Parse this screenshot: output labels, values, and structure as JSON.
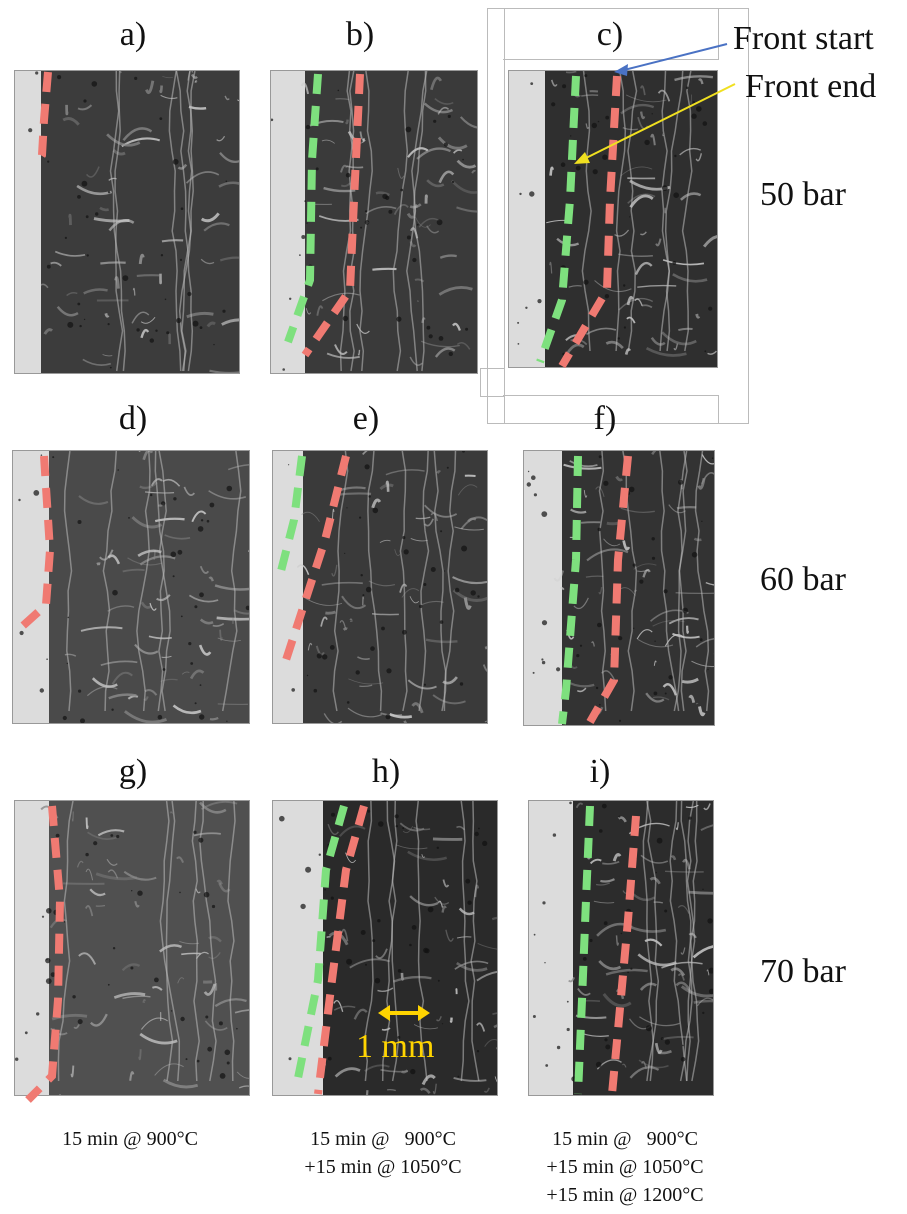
{
  "panels": [
    {
      "id": "a",
      "label": "a)",
      "fronts": 1
    },
    {
      "id": "b",
      "label": "b)",
      "fronts": 2
    },
    {
      "id": "c",
      "label": "c)",
      "fronts": 2
    },
    {
      "id": "d",
      "label": "d)",
      "fronts": 1
    },
    {
      "id": "e",
      "label": "e)",
      "fronts": 2
    },
    {
      "id": "f",
      "label": "f)",
      "fronts": 2
    },
    {
      "id": "g",
      "label": "g)",
      "fronts": 1
    },
    {
      "id": "h",
      "label": "h)",
      "fronts": 2
    },
    {
      "id": "i",
      "label": "i)",
      "fronts": 2
    }
  ],
  "pressures": [
    "50 bar",
    "60 bar",
    "70 bar"
  ],
  "annotations": {
    "front_start": "Front start",
    "front_end": "Front end",
    "scale_bar": "1 mm"
  },
  "captions": {
    "col1": "15 min @ 900°C",
    "col2_line1": "15 min @   900°C",
    "col2_line2": "+15 min @ 1050°C",
    "col3_line1": "15 min @   900°C",
    "col3_line2": "+15 min @ 1050°C",
    "col3_line3": "+15 min @ 1200°C"
  },
  "colors": {
    "front_start_line": "#f07a72",
    "front_end_line": "#7ee07e",
    "front_start_arrow": "#4a72c4",
    "front_end_arrow": "#f0e020",
    "scale_bar": "#ffd400"
  }
}
